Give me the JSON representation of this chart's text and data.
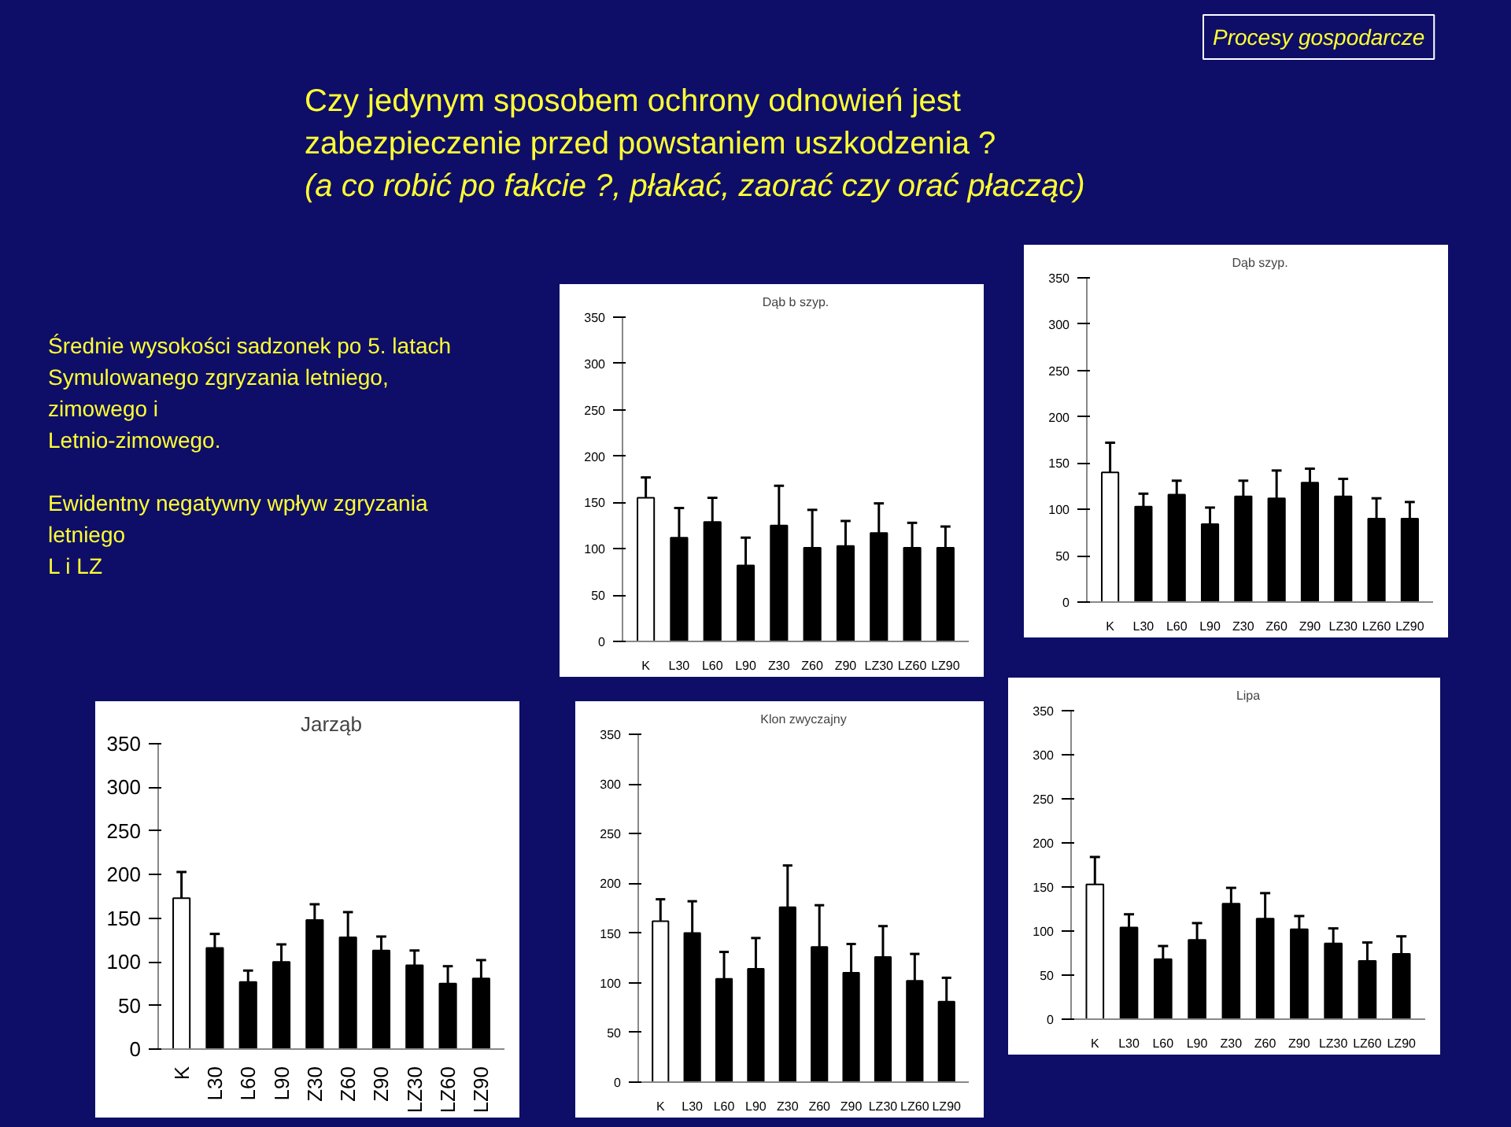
{
  "chart_data": [
    {
      "type": "other",
      "title": "Czy jedynym sposobem ochrony odnowień jest zabezpieczenie przed powstaniem uszkodzenia ?",
      "subtitle": "(a co robić po fakcie ?, płakać, zaorać czy orać płacząc)",
      "annotations": [
        "Procesy gospodarcze",
        "Średnie wysokości sadzonek po 5. latach",
        "Symulowanego zgryzania letniego,",
        "zimowego i",
        "Letnio-zimowego.",
        "Ewidentny negatywny wpływ zgryzania",
        "letniego",
        "L i LZ"
      ]
    },
    {
      "type": "bar",
      "title": "Dąb b szyp.",
      "categories": [
        "K",
        "L30",
        "L60",
        "L90",
        "Z30",
        "Z60",
        "Z90",
        "LZ30",
        "LZ60",
        "LZ90"
      ],
      "values": [
        155,
        112,
        129,
        82,
        125,
        101,
        103,
        117,
        101,
        101
      ],
      "colors": [
        "#ffffff",
        "#000000",
        "#000000",
        "#000000",
        "#000000",
        "#000000",
        "#000000",
        "#000000",
        "#000000",
        "#000000"
      ],
      "errors": [
        [
          155,
          177
        ],
        [
          112,
          144
        ],
        [
          129,
          155
        ],
        [
          82,
          112
        ],
        [
          125,
          168
        ],
        [
          101,
          142
        ],
        [
          103,
          130
        ],
        [
          117,
          149
        ],
        [
          101,
          128
        ],
        [
          101,
          124
        ]
      ],
      "ylim": [
        0,
        350
      ],
      "yticks": [
        0,
        50,
        100,
        150,
        200,
        250,
        300,
        350
      ]
    },
    {
      "type": "bar",
      "title": "Dąb szyp.",
      "categories": [
        "K",
        "L30",
        "L60",
        "L90",
        "Z30",
        "Z60",
        "Z90",
        "LZ30",
        "LZ60",
        "LZ90"
      ],
      "values": [
        140,
        103,
        116,
        84,
        114,
        112,
        129,
        114,
        90,
        90
      ],
      "colors": [
        "#ffffff",
        "#000000",
        "#000000",
        "#000000",
        "#000000",
        "#000000",
        "#000000",
        "#000000",
        "#000000",
        "#000000"
      ],
      "errors": [
        [
          140,
          172
        ],
        [
          103,
          117
        ],
        [
          116,
          131
        ],
        [
          84,
          102
        ],
        [
          114,
          131
        ],
        [
          112,
          142
        ],
        [
          129,
          144
        ],
        [
          114,
          133
        ],
        [
          90,
          112
        ],
        [
          90,
          108
        ]
      ],
      "ylim": [
        0,
        350
      ],
      "yticks": [
        0,
        50,
        100,
        150,
        200,
        250,
        300,
        350
      ]
    },
    {
      "type": "bar",
      "title": "Jarząb",
      "categories": [
        "K",
        "L30",
        "L60",
        "L90",
        "Z30",
        "Z60",
        "Z90",
        "LZ30",
        "LZ60",
        "LZ90"
      ],
      "values": [
        173,
        116,
        77,
        100,
        148,
        128,
        113,
        96,
        75,
        81
      ],
      "colors": [
        "#ffffff",
        "#000000",
        "#000000",
        "#000000",
        "#000000",
        "#000000",
        "#000000",
        "#000000",
        "#000000",
        "#000000"
      ],
      "errors": [
        [
          173,
          203
        ],
        [
          116,
          132
        ],
        [
          77,
          90
        ],
        [
          100,
          120
        ],
        [
          148,
          166
        ],
        [
          128,
          157
        ],
        [
          113,
          129
        ],
        [
          96,
          113
        ],
        [
          75,
          95
        ],
        [
          81,
          102
        ]
      ],
      "ylim": [
        0,
        350
      ],
      "yticks": [
        0,
        50,
        100,
        150,
        200,
        250,
        300,
        350
      ]
    },
    {
      "type": "bar",
      "title": "Klon zwyczajny",
      "categories": [
        "K",
        "L30",
        "L60",
        "L90",
        "Z30",
        "Z60",
        "Z90",
        "LZ30",
        "LZ60",
        "LZ90"
      ],
      "values": [
        162,
        150,
        104,
        114,
        176,
        136,
        110,
        126,
        102,
        81
      ],
      "colors": [
        "#ffffff",
        "#000000",
        "#000000",
        "#000000",
        "#000000",
        "#000000",
        "#000000",
        "#000000",
        "#000000",
        "#000000"
      ],
      "errors": [
        [
          162,
          184
        ],
        [
          150,
          182
        ],
        [
          104,
          131
        ],
        [
          114,
          145
        ],
        [
          176,
          218
        ],
        [
          136,
          178
        ],
        [
          110,
          139
        ],
        [
          126,
          157
        ],
        [
          102,
          129
        ],
        [
          81,
          105
        ]
      ],
      "ylim": [
        0,
        350
      ],
      "yticks": [
        0,
        50,
        100,
        150,
        200,
        250,
        300,
        350
      ]
    },
    {
      "type": "bar",
      "title": "Lipa",
      "categories": [
        "K",
        "L30",
        "L60",
        "L90",
        "Z30",
        "Z60",
        "Z90",
        "LZ30",
        "LZ60",
        "LZ90"
      ],
      "values": [
        153,
        104,
        68,
        90,
        131,
        114,
        102,
        86,
        66,
        74
      ],
      "colors": [
        "#ffffff",
        "#000000",
        "#000000",
        "#000000",
        "#000000",
        "#000000",
        "#000000",
        "#000000",
        "#000000",
        "#000000"
      ],
      "errors": [
        [
          153,
          184
        ],
        [
          104,
          119
        ],
        [
          68,
          83
        ],
        [
          90,
          109
        ],
        [
          131,
          149
        ],
        [
          114,
          143
        ],
        [
          102,
          117
        ],
        [
          86,
          103
        ],
        [
          66,
          87
        ],
        [
          74,
          94
        ]
      ],
      "ylim": [
        0,
        350
      ],
      "yticks": [
        0,
        50,
        100,
        150,
        200,
        250,
        300,
        350
      ]
    }
  ]
}
